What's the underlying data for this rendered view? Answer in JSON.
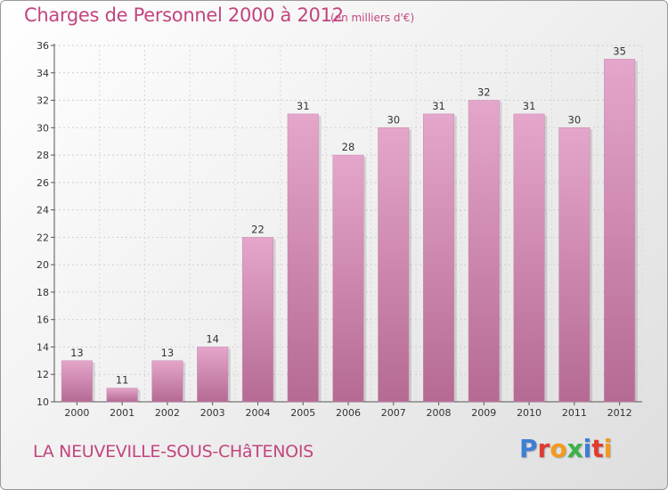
{
  "header": {
    "title": "Charges de Personnel 2000 à 2012",
    "unit": "(en milliers d'€)"
  },
  "footer": {
    "place": "LA NEUVEVILLE-SOUS-CHâTENOIS",
    "brand_letters": [
      "P",
      "r",
      "o",
      "x",
      "i",
      "t",
      "i"
    ],
    "brand_colors": [
      "#3d7fd4",
      "#e03c31",
      "#f39a1e",
      "#3bb24a",
      "#3d7fd4",
      "#e03c31",
      "#f39a1e"
    ]
  },
  "colors": {
    "bar_light": "#e5a6cb",
    "bar_dark": "#b56a93",
    "title": "#c2457f"
  },
  "chart_data": {
    "type": "bar",
    "title": "Charges de Personnel 2000 à 2012",
    "subtitle": "(en milliers d'€)",
    "xlabel": "",
    "ylabel": "",
    "categories": [
      "2000",
      "2001",
      "2002",
      "2003",
      "2004",
      "2005",
      "2006",
      "2007",
      "2008",
      "2009",
      "2010",
      "2011",
      "2012"
    ],
    "values": [
      13,
      11,
      13,
      14,
      22,
      31,
      28,
      30,
      31,
      32,
      31,
      30,
      35
    ],
    "ylim": [
      10,
      36
    ],
    "yticks": [
      10,
      12,
      14,
      16,
      18,
      20,
      22,
      24,
      26,
      28,
      30,
      32,
      34,
      36
    ],
    "grid": true
  }
}
